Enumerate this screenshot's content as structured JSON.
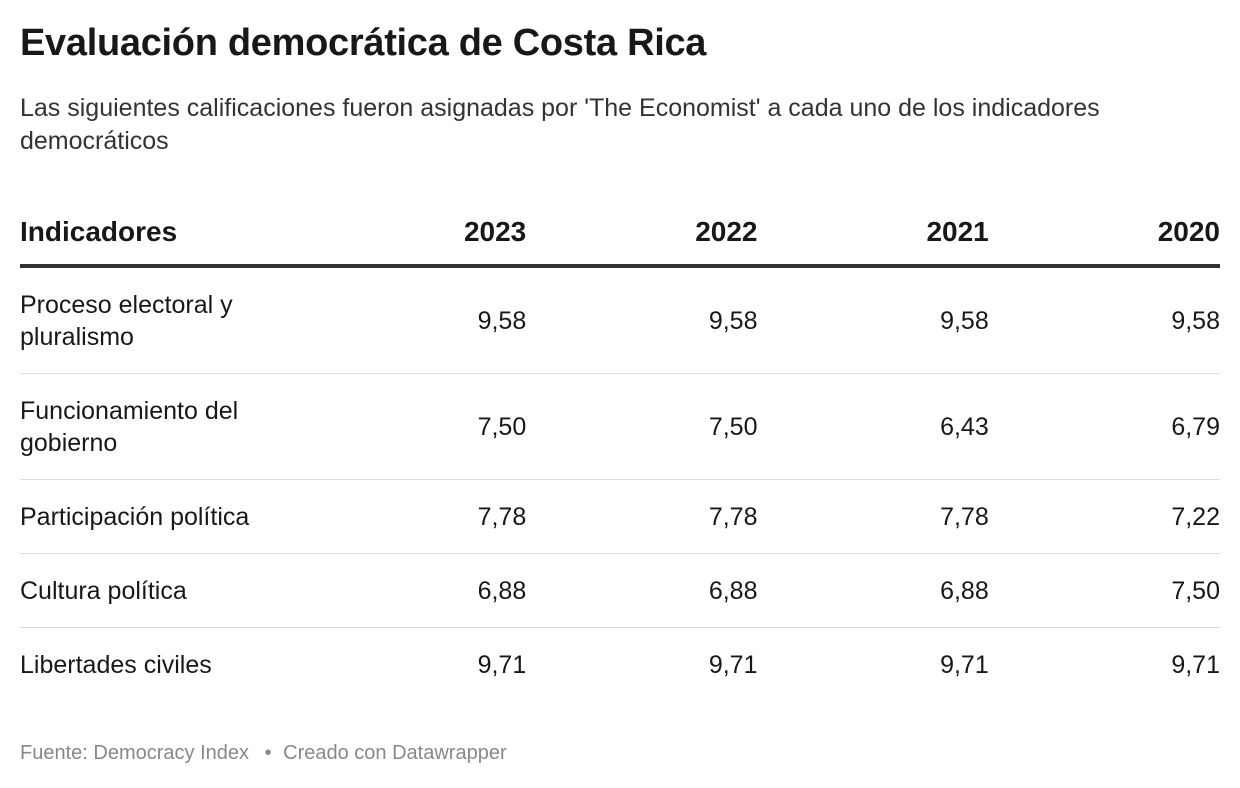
{
  "title": "Evaluación democrática de Costa Rica",
  "subtitle": "Las siguientes calificaciones fueron asignadas por 'The Economist' a cada uno de los indicadores democráticos",
  "chart_data": {
    "type": "table",
    "columns": [
      "Indicadores",
      "2023",
      "2022",
      "2021",
      "2020"
    ],
    "rows": [
      [
        "Proceso electoral y pluralismo",
        "9,58",
        "9,58",
        "9,58",
        "9,58"
      ],
      [
        "Funcionamiento del gobierno",
        "7,50",
        "7,50",
        "6,43",
        "6,79"
      ],
      [
        "Participación política",
        "7,78",
        "7,78",
        "7,78",
        "7,22"
      ],
      [
        "Cultura política",
        "6,88",
        "6,88",
        "6,88",
        "7,50"
      ],
      [
        "Libertades civiles",
        "9,71",
        "9,71",
        "9,71",
        "9,71"
      ]
    ]
  },
  "footer": {
    "source": "Fuente: Democracy Index",
    "separator": "•",
    "credit": "Creado con Datawrapper"
  }
}
